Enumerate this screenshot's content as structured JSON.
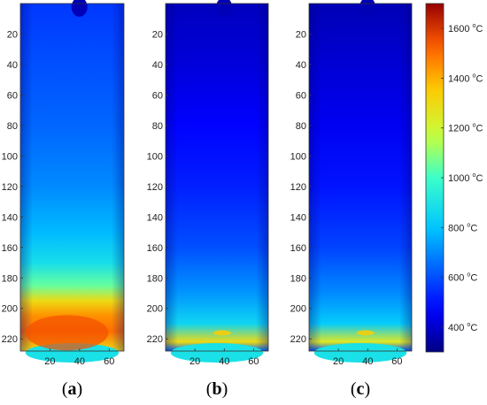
{
  "chart_data": {
    "type": "heatmap",
    "colorbar": {
      "min": 300,
      "max": 1700,
      "ticks": [
        {
          "value": 400,
          "label": "400",
          "unit_sup": "o",
          "unit": "C"
        },
        {
          "value": 600,
          "label": "600",
          "unit_sup": "o",
          "unit": "C"
        },
        {
          "value": 800,
          "label": "800",
          "unit_sup": "o",
          "unit": "C"
        },
        {
          "value": 1000,
          "label": "1000",
          "unit_sup": "o",
          "unit": "C"
        },
        {
          "value": 1200,
          "label": "1200",
          "unit_sup": "o",
          "unit": "C"
        },
        {
          "value": 1400,
          "label": "1400",
          "unit_sup": "o",
          "unit": "C"
        },
        {
          "value": 1600,
          "label": "1600",
          "unit_sup": "o",
          "unit": "C"
        }
      ]
    },
    "panels": [
      {
        "label": "a",
        "xlim": [
          0,
          70
        ],
        "ylim": [
          0,
          228
        ],
        "x_ticks": [
          20,
          40,
          60
        ],
        "y_ticks": [
          20,
          40,
          60,
          80,
          100,
          120,
          140,
          160,
          180,
          200,
          220
        ],
        "temperature_profile": [
          {
            "y": 0,
            "value": 560
          },
          {
            "y": 40,
            "value": 600
          },
          {
            "y": 80,
            "value": 640
          },
          {
            "y": 120,
            "value": 700
          },
          {
            "y": 150,
            "value": 780
          },
          {
            "y": 170,
            "value": 880
          },
          {
            "y": 185,
            "value": 1050
          },
          {
            "y": 195,
            "value": 1300
          },
          {
            "y": 205,
            "value": 1450
          },
          {
            "y": 215,
            "value": 1500
          },
          {
            "y": 228,
            "value": 1300
          }
        ]
      },
      {
        "label": "b",
        "xlim": [
          0,
          70
        ],
        "ylim": [
          0,
          228
        ],
        "x_ticks": [
          20,
          40,
          60
        ],
        "y_ticks": [
          20,
          40,
          60,
          80,
          100,
          120,
          140,
          160,
          180,
          200,
          220
        ],
        "temperature_profile": [
          {
            "y": 0,
            "value": 380
          },
          {
            "y": 40,
            "value": 420
          },
          {
            "y": 80,
            "value": 470
          },
          {
            "y": 120,
            "value": 520
          },
          {
            "y": 160,
            "value": 600
          },
          {
            "y": 190,
            "value": 720
          },
          {
            "y": 210,
            "value": 850
          },
          {
            "y": 222,
            "value": 1300
          },
          {
            "y": 228,
            "value": 650
          }
        ]
      },
      {
        "label": "c",
        "xlim": [
          0,
          70
        ],
        "ylim": [
          0,
          228
        ],
        "x_ticks": [
          20,
          40,
          60
        ],
        "y_ticks": [
          20,
          40,
          60,
          80,
          100,
          120,
          140,
          160,
          180,
          200,
          220
        ],
        "temperature_profile": [
          {
            "y": 0,
            "value": 370
          },
          {
            "y": 40,
            "value": 410
          },
          {
            "y": 80,
            "value": 450
          },
          {
            "y": 120,
            "value": 500
          },
          {
            "y": 160,
            "value": 580
          },
          {
            "y": 190,
            "value": 700
          },
          {
            "y": 210,
            "value": 820
          },
          {
            "y": 222,
            "value": 1250
          },
          {
            "y": 228,
            "value": 620
          }
        ]
      }
    ]
  }
}
